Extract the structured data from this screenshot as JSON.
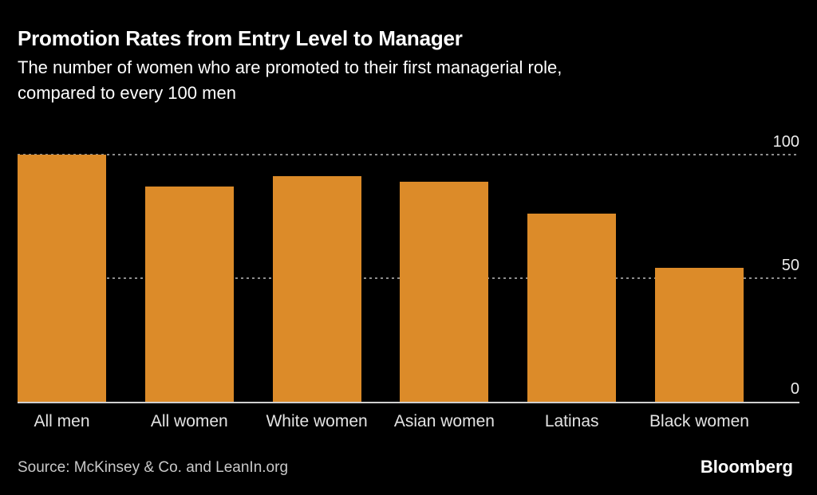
{
  "header": {
    "title": "Promotion Rates from Entry Level to Manager",
    "subtitle_lines": [
      "The number of women who are promoted to their first managerial role,",
      "compared to every 100 men"
    ]
  },
  "chart_data": {
    "type": "bar",
    "title": "Promotion Rates from Entry Level to Manager",
    "subtitle": "The number of women who are promoted to their first managerial role, compared to every 100 men",
    "categories": [
      "All men",
      "All women",
      "White women",
      "Asian women",
      "Latinas",
      "Black women"
    ],
    "values": [
      100,
      87,
      91,
      89,
      76,
      54
    ],
    "xlabel": "",
    "ylabel": "",
    "ylim": [
      0,
      100
    ],
    "yticks": [
      0,
      50,
      100
    ],
    "ytick_side": "right",
    "grid": "horizontal dotted gridlines at 50 and 100, solid axis baseline at 0",
    "legend": "none",
    "bar_color": "#DC8B29",
    "background_color": "#000000"
  },
  "footer": {
    "source": "Source: McKinsey & Co. and LeanIn.org",
    "brand": "Bloomberg"
  },
  "colors": {
    "background": "#000000",
    "bar": "#DC8B29",
    "title_text": "#FFFFFF",
    "axis_text": "#E6E6E6",
    "source_text": "#C9C9C9",
    "gridline": "#8D8D8D",
    "baseline": "#CFCFCF"
  }
}
